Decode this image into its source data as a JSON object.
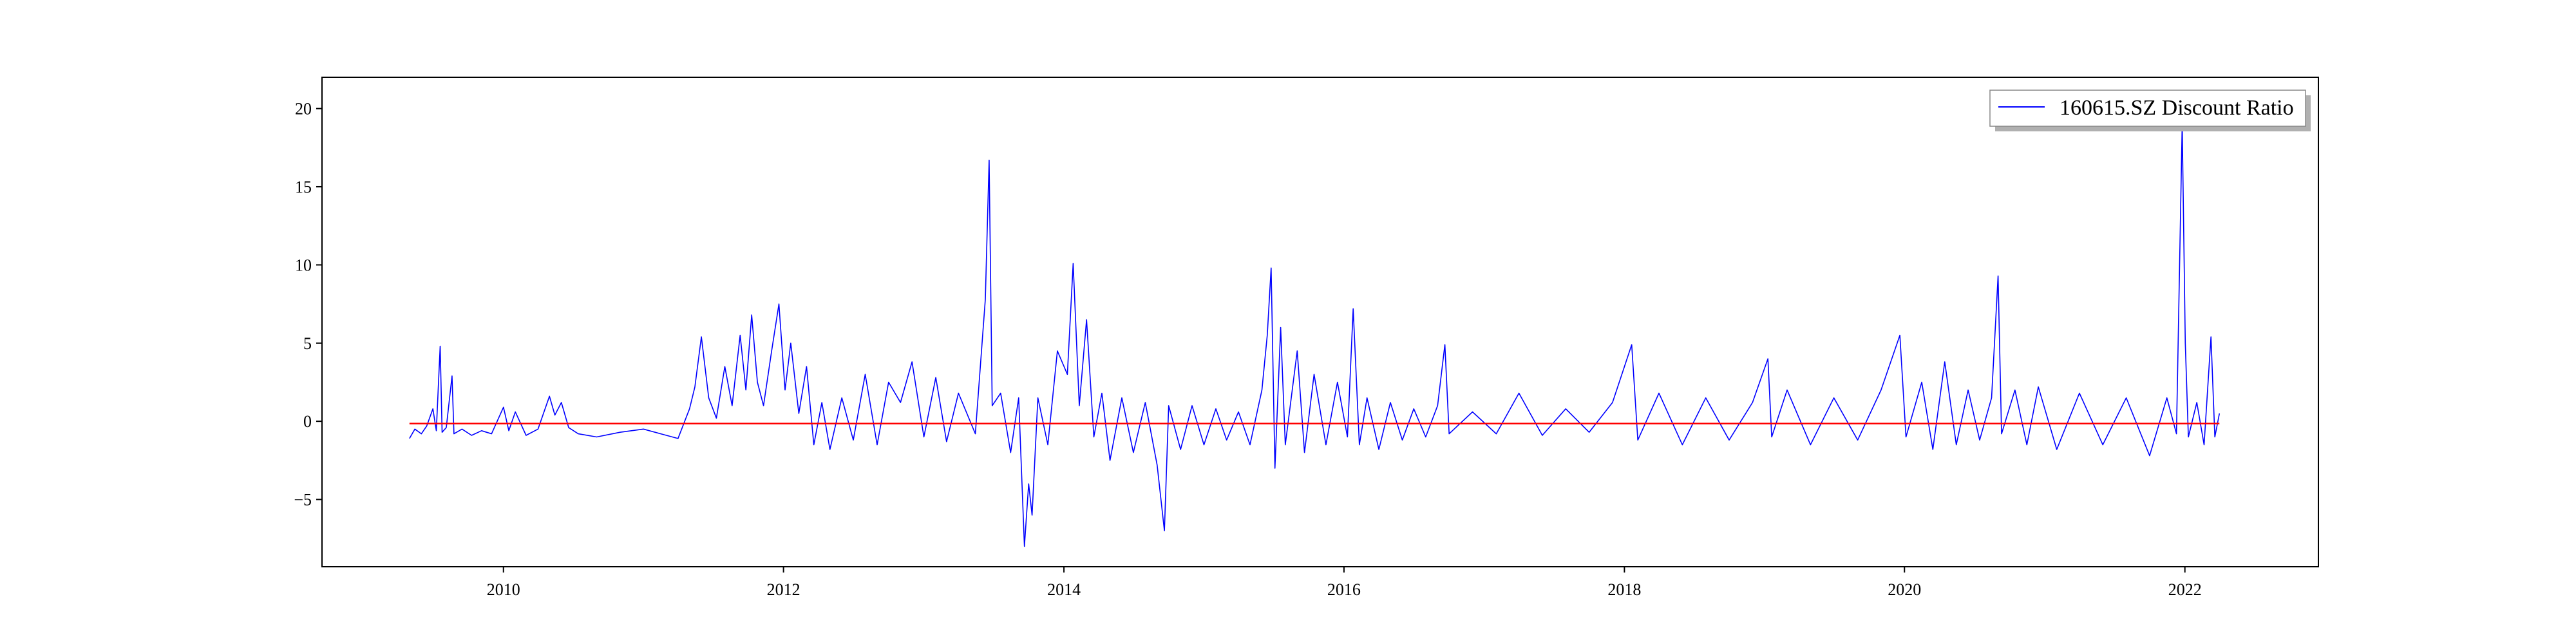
{
  "chart_data": {
    "type": "line",
    "title": "",
    "xlabel": "",
    "ylabel": "",
    "x_range": [
      "2008-09-15",
      "2022-12-15"
    ],
    "ylim": [
      -9.3,
      22.0
    ],
    "x_ticks": [
      {
        "date": "2010-01-01",
        "label": "2010"
      },
      {
        "date": "2012-01-01",
        "label": "2012"
      },
      {
        "date": "2014-01-01",
        "label": "2014"
      },
      {
        "date": "2016-01-01",
        "label": "2016"
      },
      {
        "date": "2018-01-01",
        "label": "2018"
      },
      {
        "date": "2020-01-01",
        "label": "2020"
      },
      {
        "date": "2022-01-01",
        "label": "2022"
      }
    ],
    "y_ticks": [
      {
        "value": -5,
        "label": "−5"
      },
      {
        "value": 0,
        "label": "0"
      },
      {
        "value": 5,
        "label": "5"
      },
      {
        "value": 10,
        "label": "10"
      },
      {
        "value": 15,
        "label": "15"
      },
      {
        "value": 20,
        "label": "20"
      }
    ],
    "grid": false,
    "legend": {
      "position": "upper-right",
      "entries": [
        "160615.SZ Discount Ratio"
      ]
    },
    "series": [
      {
        "name": "160615.SZ Discount Ratio",
        "color": "#0000ff",
        "points": [
          {
            "x": "2009-05-01",
            "y": -1.1
          },
          {
            "x": "2009-05-15",
            "y": -0.5
          },
          {
            "x": "2009-06-01",
            "y": -0.8
          },
          {
            "x": "2009-06-15",
            "y": -0.3
          },
          {
            "x": "2009-07-01",
            "y": 0.8
          },
          {
            "x": "2009-07-10",
            "y": -0.6
          },
          {
            "x": "2009-07-20",
            "y": 4.8
          },
          {
            "x": "2009-07-25",
            "y": -0.7
          },
          {
            "x": "2009-08-05",
            "y": -0.4
          },
          {
            "x": "2009-08-20",
            "y": 2.9
          },
          {
            "x": "2009-08-25",
            "y": -0.8
          },
          {
            "x": "2009-09-15",
            "y": -0.5
          },
          {
            "x": "2009-10-10",
            "y": -0.9
          },
          {
            "x": "2009-11-05",
            "y": -0.6
          },
          {
            "x": "2009-12-01",
            "y": -0.8
          },
          {
            "x": "2010-01-01",
            "y": 0.9
          },
          {
            "x": "2010-01-15",
            "y": -0.6
          },
          {
            "x": "2010-02-01",
            "y": 0.6
          },
          {
            "x": "2010-03-01",
            "y": -0.9
          },
          {
            "x": "2010-04-01",
            "y": -0.5
          },
          {
            "x": "2010-05-01",
            "y": 1.6
          },
          {
            "x": "2010-05-15",
            "y": 0.4
          },
          {
            "x": "2010-06-01",
            "y": 1.2
          },
          {
            "x": "2010-06-20",
            "y": -0.4
          },
          {
            "x": "2010-07-15",
            "y": -0.8
          },
          {
            "x": "2010-09-01",
            "y": -1.0
          },
          {
            "x": "2010-11-01",
            "y": -0.7
          },
          {
            "x": "2011-01-01",
            "y": -0.5
          },
          {
            "x": "2011-02-15",
            "y": -0.8
          },
          {
            "x": "2011-04-01",
            "y": -1.1
          },
          {
            "x": "2011-05-01",
            "y": 0.8
          },
          {
            "x": "2011-05-15",
            "y": 2.2
          },
          {
            "x": "2011-06-01",
            "y": 5.4
          },
          {
            "x": "2011-06-20",
            "y": 1.5
          },
          {
            "x": "2011-07-10",
            "y": 0.2
          },
          {
            "x": "2011-08-01",
            "y": 3.5
          },
          {
            "x": "2011-08-20",
            "y": 1.0
          },
          {
            "x": "2011-09-10",
            "y": 5.5
          },
          {
            "x": "2011-09-25",
            "y": 2.0
          },
          {
            "x": "2011-10-10",
            "y": 6.8
          },
          {
            "x": "2011-10-25",
            "y": 2.5
          },
          {
            "x": "2011-11-10",
            "y": 1.0
          },
          {
            "x": "2011-12-01",
            "y": 4.5
          },
          {
            "x": "2011-12-20",
            "y": 7.5
          },
          {
            "x": "2012-01-05",
            "y": 2.0
          },
          {
            "x": "2012-01-20",
            "y": 5.0
          },
          {
            "x": "2012-02-10",
            "y": 0.5
          },
          {
            "x": "2012-03-01",
            "y": 3.5
          },
          {
            "x": "2012-03-20",
            "y": -1.5
          },
          {
            "x": "2012-04-10",
            "y": 1.2
          },
          {
            "x": "2012-05-01",
            "y": -1.8
          },
          {
            "x": "2012-06-01",
            "y": 1.5
          },
          {
            "x": "2012-07-01",
            "y": -1.2
          },
          {
            "x": "2012-08-01",
            "y": 3.0
          },
          {
            "x": "2012-09-01",
            "y": -1.5
          },
          {
            "x": "2012-10-01",
            "y": 2.5
          },
          {
            "x": "2012-11-01",
            "y": 1.2
          },
          {
            "x": "2012-12-01",
            "y": 3.8
          },
          {
            "x": "2013-01-01",
            "y": -1.0
          },
          {
            "x": "2013-02-01",
            "y": 2.8
          },
          {
            "x": "2013-03-01",
            "y": -1.3
          },
          {
            "x": "2013-04-01",
            "y": 1.8
          },
          {
            "x": "2013-05-15",
            "y": -0.8
          },
          {
            "x": "2013-06-10",
            "y": 7.8
          },
          {
            "x": "2013-06-20",
            "y": 16.7
          },
          {
            "x": "2013-06-28",
            "y": 1.0
          },
          {
            "x": "2013-07-20",
            "y": 1.8
          },
          {
            "x": "2013-08-15",
            "y": -2.0
          },
          {
            "x": "2013-09-05",
            "y": 1.5
          },
          {
            "x": "2013-09-20",
            "y": -8.0
          },
          {
            "x": "2013-10-01",
            "y": -4.0
          },
          {
            "x": "2013-10-10",
            "y": -6.0
          },
          {
            "x": "2013-10-25",
            "y": 1.5
          },
          {
            "x": "2013-11-20",
            "y": -1.5
          },
          {
            "x": "2013-12-15",
            "y": 4.5
          },
          {
            "x": "2014-01-10",
            "y": 3.0
          },
          {
            "x": "2014-01-25",
            "y": 10.1
          },
          {
            "x": "2014-02-10",
            "y": 1.0
          },
          {
            "x": "2014-03-01",
            "y": 6.5
          },
          {
            "x": "2014-03-20",
            "y": -1.0
          },
          {
            "x": "2014-04-10",
            "y": 1.8
          },
          {
            "x": "2014-05-01",
            "y": -2.5
          },
          {
            "x": "2014-06-01",
            "y": 1.5
          },
          {
            "x": "2014-07-01",
            "y": -2.0
          },
          {
            "x": "2014-08-01",
            "y": 1.2
          },
          {
            "x": "2014-09-01",
            "y": -2.8
          },
          {
            "x": "2014-09-20",
            "y": -7.0
          },
          {
            "x": "2014-10-01",
            "y": 1.0
          },
          {
            "x": "2014-11-01",
            "y": -1.8
          },
          {
            "x": "2014-12-01",
            "y": 1.0
          },
          {
            "x": "2015-01-01",
            "y": -1.5
          },
          {
            "x": "2015-02-01",
            "y": 0.8
          },
          {
            "x": "2015-03-01",
            "y": -1.2
          },
          {
            "x": "2015-04-01",
            "y": 0.6
          },
          {
            "x": "2015-05-01",
            "y": -1.5
          },
          {
            "x": "2015-06-01",
            "y": 2.0
          },
          {
            "x": "2015-06-15",
            "y": 5.5
          },
          {
            "x": "2015-06-25",
            "y": 9.8
          },
          {
            "x": "2015-07-05",
            "y": -3.0
          },
          {
            "x": "2015-07-20",
            "y": 6.0
          },
          {
            "x": "2015-08-01",
            "y": -1.5
          },
          {
            "x": "2015-09-01",
            "y": 4.5
          },
          {
            "x": "2015-09-20",
            "y": -2.0
          },
          {
            "x": "2015-10-15",
            "y": 3.0
          },
          {
            "x": "2015-11-15",
            "y": -1.5
          },
          {
            "x": "2015-12-15",
            "y": 2.5
          },
          {
            "x": "2016-01-10",
            "y": -1.0
          },
          {
            "x": "2016-01-25",
            "y": 7.2
          },
          {
            "x": "2016-02-10",
            "y": -1.5
          },
          {
            "x": "2016-03-01",
            "y": 1.5
          },
          {
            "x": "2016-04-01",
            "y": -1.8
          },
          {
            "x": "2016-05-01",
            "y": 1.2
          },
          {
            "x": "2016-06-01",
            "y": -1.2
          },
          {
            "x": "2016-07-01",
            "y": 0.8
          },
          {
            "x": "2016-08-01",
            "y": -1.0
          },
          {
            "x": "2016-09-01",
            "y": 1.0
          },
          {
            "x": "2016-09-20",
            "y": 4.9
          },
          {
            "x": "2016-10-01",
            "y": -0.8
          },
          {
            "x": "2016-12-01",
            "y": 0.6
          },
          {
            "x": "2017-02-01",
            "y": -0.8
          },
          {
            "x": "2017-04-01",
            "y": 1.8
          },
          {
            "x": "2017-06-01",
            "y": -0.9
          },
          {
            "x": "2017-08-01",
            "y": 0.8
          },
          {
            "x": "2017-10-01",
            "y": -0.7
          },
          {
            "x": "2017-12-01",
            "y": 1.2
          },
          {
            "x": "2018-01-20",
            "y": 4.9
          },
          {
            "x": "2018-02-05",
            "y": -1.2
          },
          {
            "x": "2018-04-01",
            "y": 1.8
          },
          {
            "x": "2018-06-01",
            "y": -1.5
          },
          {
            "x": "2018-08-01",
            "y": 1.5
          },
          {
            "x": "2018-10-01",
            "y": -1.2
          },
          {
            "x": "2018-12-01",
            "y": 1.2
          },
          {
            "x": "2019-01-10",
            "y": 4.0
          },
          {
            "x": "2019-01-20",
            "y": -1.0
          },
          {
            "x": "2019-03-01",
            "y": 2.0
          },
          {
            "x": "2019-05-01",
            "y": -1.5
          },
          {
            "x": "2019-07-01",
            "y": 1.5
          },
          {
            "x": "2019-09-01",
            "y": -1.2
          },
          {
            "x": "2019-11-01",
            "y": 2.0
          },
          {
            "x": "2019-12-20",
            "y": 5.5
          },
          {
            "x": "2020-01-05",
            "y": -1.0
          },
          {
            "x": "2020-02-15",
            "y": 2.5
          },
          {
            "x": "2020-03-15",
            "y": -1.8
          },
          {
            "x": "2020-04-15",
            "y": 3.8
          },
          {
            "x": "2020-05-15",
            "y": -1.5
          },
          {
            "x": "2020-06-15",
            "y": 2.0
          },
          {
            "x": "2020-07-15",
            "y": -1.2
          },
          {
            "x": "2020-08-15",
            "y": 1.5
          },
          {
            "x": "2020-09-01",
            "y": 9.3
          },
          {
            "x": "2020-09-10",
            "y": -0.8
          },
          {
            "x": "2020-10-15",
            "y": 2.0
          },
          {
            "x": "2020-11-15",
            "y": -1.5
          },
          {
            "x": "2020-12-15",
            "y": 2.2
          },
          {
            "x": "2021-02-01",
            "y": -1.8
          },
          {
            "x": "2021-04-01",
            "y": 1.8
          },
          {
            "x": "2021-06-01",
            "y": -1.5
          },
          {
            "x": "2021-08-01",
            "y": 1.5
          },
          {
            "x": "2021-10-01",
            "y": -2.2
          },
          {
            "x": "2021-11-15",
            "y": 1.5
          },
          {
            "x": "2021-12-10",
            "y": -0.8
          },
          {
            "x": "2021-12-25",
            "y": 19.0
          },
          {
            "x": "2022-01-02",
            "y": 5.0
          },
          {
            "x": "2022-01-10",
            "y": -1.0
          },
          {
            "x": "2022-02-01",
            "y": 1.2
          },
          {
            "x": "2022-02-20",
            "y": -1.5
          },
          {
            "x": "2022-03-10",
            "y": 5.4
          },
          {
            "x": "2022-03-20",
            "y": -1.0
          },
          {
            "x": "2022-04-01",
            "y": 0.5
          }
        ]
      },
      {
        "color": "#ff0000",
        "points": [
          {
            "x": "2009-05-01",
            "y": -0.15
          },
          {
            "x": "2022-04-01",
            "y": -0.15
          }
        ]
      }
    ]
  }
}
